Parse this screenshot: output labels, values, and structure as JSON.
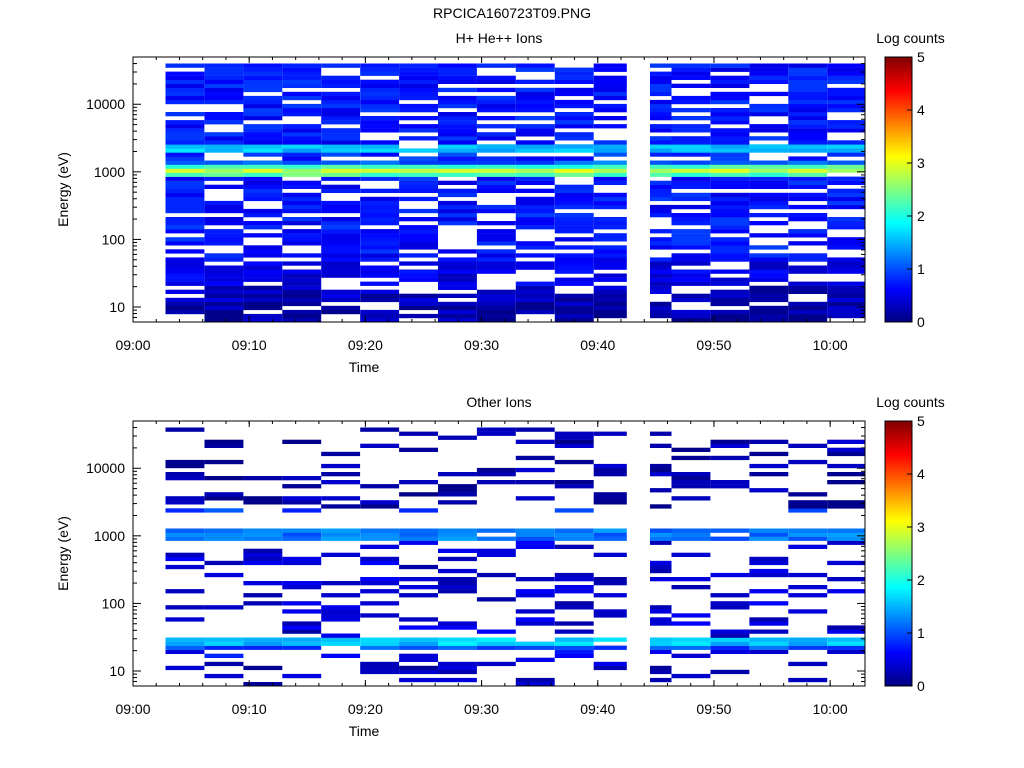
{
  "title": "RPCICA160723T09.PNG",
  "chart_data": [
    {
      "type": "heatmap",
      "title": "H+ He++ Ions",
      "xlabel": "Time",
      "ylabel": "Energy (eV)",
      "x_ticks": [
        "09:00",
        "09:10",
        "09:20",
        "09:30",
        "09:40",
        "09:50",
        "10:00"
      ],
      "y_ticks": [
        "10",
        "100",
        "1000",
        "10000"
      ],
      "y_scale": "log",
      "ylim": [
        6,
        50000
      ],
      "xlim_minutes": [
        0,
        63
      ],
      "data_gap_minutes": [
        42.5,
        44.5
      ],
      "colorbar": {
        "label": "Log counts",
        "ticks": [
          "0",
          "1",
          "2",
          "3",
          "4",
          "5"
        ],
        "range": [
          0,
          5
        ]
      },
      "intensity_by_band": [
        {
          "energy_ev": [
            6,
            12
          ],
          "log_counts": 0.2
        },
        {
          "energy_ev": [
            12,
            22
          ],
          "log_counts": 0.3
        },
        {
          "energy_ev": [
            22,
            50
          ],
          "log_counts": 0.5
        },
        {
          "energy_ev": [
            50,
            800
          ],
          "log_counts": 0.7
        },
        {
          "energy_ev": [
            800,
            900
          ],
          "log_counts": 1.4
        },
        {
          "energy_ev": [
            900,
            1000
          ],
          "log_counts": 2.3
        },
        {
          "energy_ev": [
            1000,
            1100
          ],
          "log_counts": 2.8
        },
        {
          "energy_ev": [
            1100,
            1250
          ],
          "log_counts": 2.2
        },
        {
          "energy_ev": [
            1250,
            1500
          ],
          "log_counts": 1.1
        },
        {
          "energy_ev": [
            1500,
            2000
          ],
          "log_counts": 0.8
        },
        {
          "energy_ev": [
            2000,
            2600
          ],
          "log_counts": 1.6
        },
        {
          "energy_ev": [
            2600,
            40000
          ],
          "log_counts": 0.7
        }
      ]
    },
    {
      "type": "heatmap",
      "title": "Other Ions",
      "xlabel": "Time",
      "ylabel": "Energy (eV)",
      "x_ticks": [
        "09:00",
        "09:10",
        "09:20",
        "09:30",
        "09:40",
        "09:50",
        "10:00"
      ],
      "y_ticks": [
        "10",
        "100",
        "1000",
        "10000"
      ],
      "y_scale": "log",
      "ylim": [
        6,
        50000
      ],
      "xlim_minutes": [
        0,
        63
      ],
      "data_gap_minutes": [
        42.5,
        44.5
      ],
      "colorbar": {
        "label": "Log counts",
        "ticks": [
          "0",
          "1",
          "2",
          "3",
          "4",
          "5"
        ],
        "range": [
          0,
          5
        ]
      },
      "intensity_by_band": [
        {
          "energy_ev": [
            6,
            14
          ],
          "log_counts": 0.3
        },
        {
          "energy_ev": [
            14,
            20
          ],
          "log_counts": 0.6
        },
        {
          "energy_ev": [
            20,
            25
          ],
          "log_counts": 1.0
        },
        {
          "energy_ev": [
            25,
            32
          ],
          "log_counts": 1.6
        },
        {
          "energy_ev": [
            32,
            800
          ],
          "log_counts": 0.4
        },
        {
          "energy_ev": [
            900,
            1300
          ],
          "log_counts": 1.2
        },
        {
          "energy_ev": [
            2200,
            2600
          ],
          "log_counts": 0.9
        },
        {
          "energy_ev": [
            2600,
            40000
          ],
          "log_counts": 0.2
        }
      ]
    }
  ]
}
